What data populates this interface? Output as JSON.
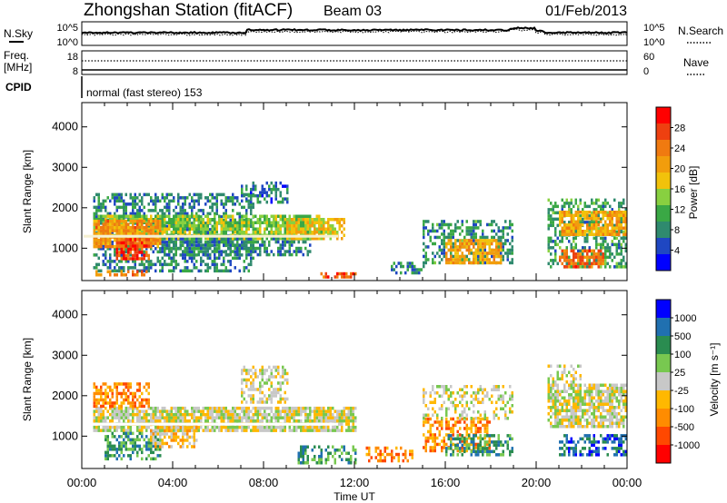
{
  "header": {
    "station": "Zhongshan Station (fitACF)",
    "beam": "Beam 03",
    "date": "01/Feb/2013"
  },
  "params": {
    "nsky_label": "N.Sky",
    "nsky_ticks": [
      "10^5",
      "10^0"
    ],
    "nsearch_label": "N.Search",
    "nsearch_ticks": [
      "10^5",
      "10^0"
    ],
    "freq_label": "Freq.",
    "freq_unit": "[MHz]",
    "freq_ticks": [
      "18",
      "8"
    ],
    "nave_label": "Nave",
    "nave_ticks": [
      "60",
      "0"
    ],
    "cpid_label": "CPID",
    "cpid_value": "normal (fast stereo) 153"
  },
  "colors": {
    "power": [
      "#0000ff",
      "#1f47c2",
      "#2f8a6e",
      "#3aa845",
      "#88d040",
      "#f2c20b",
      "#f29d0c",
      "#f07a10",
      "#ee4010",
      "#ff0000"
    ],
    "velocity": [
      "#ff0000",
      "#ff4800",
      "#ff8c00",
      "#ffb800",
      "#c8c8c8",
      "#78c850",
      "#2a8c50",
      "#2070b0",
      "#0000ff"
    ]
  },
  "chart_data": [
    {
      "type": "heatmap",
      "name": "power",
      "ylabel": "Slant Range [km]",
      "xlabel": "",
      "ylim": [
        200,
        4600
      ],
      "yticks": [
        "1000",
        "2000",
        "3000",
        "4000"
      ],
      "ytick_values": [
        1000,
        2000,
        3000,
        4000
      ],
      "xlim": [
        0,
        24
      ],
      "colorbar_label": "Power [dB]",
      "colorbar_ticks": [
        "4",
        "8",
        "12",
        "16",
        "20",
        "24",
        "28"
      ],
      "colorbar_values": [
        4,
        8,
        12,
        16,
        20,
        24,
        28
      ],
      "colorbar_range": [
        0,
        32
      ],
      "regions": [
        {
          "t0": 0.5,
          "t1": 7.5,
          "r0": 400,
          "r1": 2300,
          "level": 8,
          "density": 0.5
        },
        {
          "t0": 0.5,
          "t1": 10.5,
          "r0": 1200,
          "r1": 1800,
          "level": 14,
          "density": 0.8
        },
        {
          "t0": 0.5,
          "t1": 3.5,
          "r0": 1000,
          "r1": 1700,
          "level": 22,
          "density": 0.85
        },
        {
          "t0": 1.5,
          "t1": 3.0,
          "r0": 700,
          "r1": 1200,
          "level": 27,
          "density": 0.8
        },
        {
          "t0": 3.5,
          "t1": 10.0,
          "r0": 800,
          "r1": 1200,
          "level": 8,
          "density": 0.6
        },
        {
          "t0": 9.0,
          "t1": 11.5,
          "r0": 1200,
          "r1": 1700,
          "level": 18,
          "density": 0.7
        },
        {
          "t0": 0.5,
          "t1": 3.0,
          "r0": 300,
          "r1": 450,
          "level": 24,
          "density": 0.6
        },
        {
          "t0": 10.5,
          "t1": 12.0,
          "r0": 250,
          "r1": 400,
          "level": 26,
          "density": 0.7
        },
        {
          "t0": 7.0,
          "t1": 9.0,
          "r0": 2100,
          "r1": 2600,
          "level": 7,
          "density": 0.4
        },
        {
          "t0": 15.0,
          "t1": 19.0,
          "r0": 600,
          "r1": 1700,
          "level": 9,
          "density": 0.45
        },
        {
          "t0": 16.0,
          "t1": 18.5,
          "r0": 600,
          "r1": 1200,
          "level": 20,
          "density": 0.7
        },
        {
          "t0": 20.5,
          "t1": 24.0,
          "r0": 500,
          "r1": 2200,
          "level": 10,
          "density": 0.5
        },
        {
          "t0": 21.0,
          "t1": 24.0,
          "r0": 1300,
          "r1": 1900,
          "level": 20,
          "density": 0.75
        },
        {
          "t0": 21.0,
          "t1": 23.0,
          "r0": 500,
          "r1": 900,
          "level": 25,
          "density": 0.7
        },
        {
          "t0": 13.5,
          "t1": 15.0,
          "r0": 350,
          "r1": 600,
          "level": 8,
          "density": 0.5
        }
      ]
    },
    {
      "type": "heatmap",
      "name": "velocity",
      "ylabel": "Slant Range [km]",
      "xlabel": "Time UT",
      "ylim": [
        200,
        4600
      ],
      "yticks": [
        "1000",
        "2000",
        "3000",
        "4000"
      ],
      "ytick_values": [
        1000,
        2000,
        3000,
        4000
      ],
      "xlim": [
        0,
        24
      ],
      "xticks": [
        "00:00",
        "04:00",
        "08:00",
        "12:00",
        "16:00",
        "20:00",
        "00:00"
      ],
      "xtick_values": [
        0,
        4,
        8,
        12,
        16,
        20,
        24
      ],
      "colorbar_label": "Velocity [m s⁻¹]",
      "colorbar_ticks": [
        "-1000",
        "-500",
        "-100",
        "-25",
        "25",
        "100",
        "500",
        "1000"
      ],
      "regions": [
        {
          "t0": 0.5,
          "t1": 12.0,
          "r0": 1100,
          "r1": 1700,
          "level": 4,
          "density": 0.85
        },
        {
          "t0": 0.5,
          "t1": 3.0,
          "r0": 1700,
          "r1": 2300,
          "level": 2,
          "density": 0.6
        },
        {
          "t0": 1.0,
          "t1": 3.5,
          "r0": 400,
          "r1": 1100,
          "level": 6,
          "density": 0.55
        },
        {
          "t0": 3.0,
          "t1": 5.0,
          "r0": 700,
          "r1": 1300,
          "level": 3,
          "density": 0.6
        },
        {
          "t0": 7.0,
          "t1": 9.0,
          "r0": 1800,
          "r1": 2700,
          "level": 4,
          "density": 0.5
        },
        {
          "t0": 9.5,
          "t1": 12.0,
          "r0": 300,
          "r1": 700,
          "level": 6,
          "density": 0.5
        },
        {
          "t0": 12.5,
          "t1": 14.5,
          "r0": 350,
          "r1": 700,
          "level": 2,
          "density": 0.45
        },
        {
          "t0": 15.0,
          "t1": 18.0,
          "r0": 600,
          "r1": 1400,
          "level": 2,
          "density": 0.55
        },
        {
          "t0": 16.0,
          "t1": 19.0,
          "r0": 500,
          "r1": 1000,
          "level": 6,
          "density": 0.55
        },
        {
          "t0": 15.0,
          "t1": 19.0,
          "r0": 1400,
          "r1": 2200,
          "level": 4,
          "density": 0.35
        },
        {
          "t0": 20.5,
          "t1": 24.0,
          "r0": 1200,
          "r1": 2300,
          "level": 4,
          "density": 0.75
        },
        {
          "t0": 21.0,
          "t1": 24.0,
          "r0": 500,
          "r1": 1000,
          "level": 7,
          "density": 0.5
        },
        {
          "t0": 20.5,
          "t1": 22.0,
          "r0": 2300,
          "r1": 2700,
          "level": 4,
          "density": 0.4
        }
      ]
    }
  ]
}
